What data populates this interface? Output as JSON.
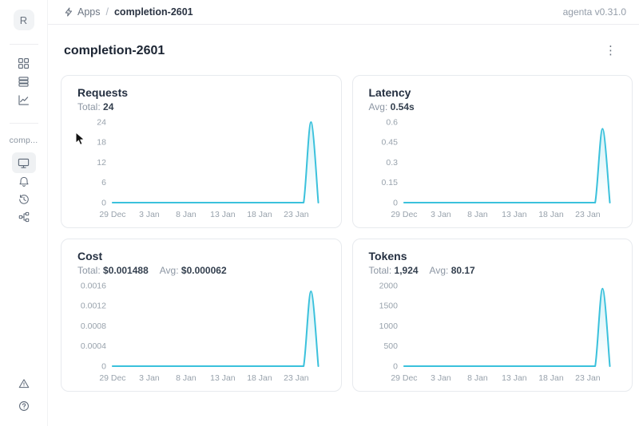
{
  "header": {
    "breadcrumb": {
      "apps": "Apps",
      "separator": "/",
      "current": "completion-2601"
    },
    "version": "agenta v0.31.0"
  },
  "avatar": {
    "letter": "R"
  },
  "sidebar": {
    "workspace_label": "comp..."
  },
  "page": {
    "title": "completion-2601",
    "kebab_menu": "⋮"
  },
  "colors": {
    "accent_line": "#3ac1dc",
    "tick_text": "#98a2ac",
    "card_border": "#e7eaee"
  },
  "chart_data": [
    {
      "type": "area",
      "title": "Requests",
      "stats": [
        {
          "label": "Total:",
          "value": "24"
        }
      ],
      "x_tick_labels": [
        "29 Dec",
        "3 Jan",
        "8 Jan",
        "13 Jan",
        "18 Jan",
        "23 Jan"
      ],
      "x_tick_indices": [
        0,
        5,
        10,
        15,
        20,
        25
      ],
      "values": [
        0,
        0,
        0,
        0,
        0,
        0,
        0,
        0,
        0,
        0,
        0,
        0,
        0,
        0,
        0,
        0,
        0,
        0,
        0,
        0,
        0,
        0,
        0,
        0,
        0,
        0,
        0,
        24,
        0
      ],
      "y_ticks": [
        0,
        6,
        12,
        18,
        24
      ],
      "y_tick_labels": [
        "0",
        "6",
        "12",
        "18",
        "24"
      ],
      "ylim": [
        0,
        24
      ],
      "grid": false,
      "line_color": "#3ac1dc"
    },
    {
      "type": "area",
      "title": "Latency",
      "stats": [
        {
          "label": "Avg:",
          "value": "0.54s"
        }
      ],
      "x_tick_labels": [
        "29 Dec",
        "3 Jan",
        "8 Jan",
        "13 Jan",
        "18 Jan",
        "23 Jan"
      ],
      "x_tick_indices": [
        0,
        5,
        10,
        15,
        20,
        25
      ],
      "values": [
        0,
        0,
        0,
        0,
        0,
        0,
        0,
        0,
        0,
        0,
        0,
        0,
        0,
        0,
        0,
        0,
        0,
        0,
        0,
        0,
        0,
        0,
        0,
        0,
        0,
        0,
        0,
        0.55,
        0
      ],
      "y_ticks": [
        0,
        0.15,
        0.3,
        0.45,
        0.6
      ],
      "y_tick_labels": [
        "0",
        "0.15",
        "0.3",
        "0.45",
        "0.6"
      ],
      "ylim": [
        0,
        0.6
      ],
      "grid": false,
      "line_color": "#3ac1dc"
    },
    {
      "type": "area",
      "title": "Cost",
      "stats": [
        {
          "label": "Total:",
          "value": "$0.001488"
        },
        {
          "label": "Avg:",
          "value": "$0.000062"
        }
      ],
      "x_tick_labels": [
        "29 Dec",
        "3 Jan",
        "8 Jan",
        "13 Jan",
        "18 Jan",
        "23 Jan"
      ],
      "x_tick_indices": [
        0,
        5,
        10,
        15,
        20,
        25
      ],
      "values": [
        0,
        0,
        0,
        0,
        0,
        0,
        0,
        0,
        0,
        0,
        0,
        0,
        0,
        0,
        0,
        0,
        0,
        0,
        0,
        0,
        0,
        0,
        0,
        0,
        0,
        0,
        0,
        0.001488,
        0
      ],
      "y_ticks": [
        0,
        0.0004,
        0.0008,
        0.0012,
        0.0016
      ],
      "y_tick_labels": [
        "0",
        "0.0004",
        "0.0008",
        "0.0012",
        "0.0016"
      ],
      "ylim": [
        0,
        0.0016
      ],
      "grid": false,
      "line_color": "#3ac1dc"
    },
    {
      "type": "area",
      "title": "Tokens",
      "stats": [
        {
          "label": "Total:",
          "value": "1,924"
        },
        {
          "label": "Avg:",
          "value": "80.17"
        }
      ],
      "x_tick_labels": [
        "29 Dec",
        "3 Jan",
        "8 Jan",
        "13 Jan",
        "18 Jan",
        "23 Jan"
      ],
      "x_tick_indices": [
        0,
        5,
        10,
        15,
        20,
        25
      ],
      "values": [
        0,
        0,
        0,
        0,
        0,
        0,
        0,
        0,
        0,
        0,
        0,
        0,
        0,
        0,
        0,
        0,
        0,
        0,
        0,
        0,
        0,
        0,
        0,
        0,
        0,
        0,
        0,
        1924,
        0
      ],
      "y_ticks": [
        0,
        500,
        1000,
        1500,
        2000
      ],
      "y_tick_labels": [
        "0",
        "500",
        "1000",
        "1500",
        "2000"
      ],
      "ylim": [
        0,
        2000
      ],
      "grid": false,
      "line_color": "#3ac1dc"
    }
  ]
}
